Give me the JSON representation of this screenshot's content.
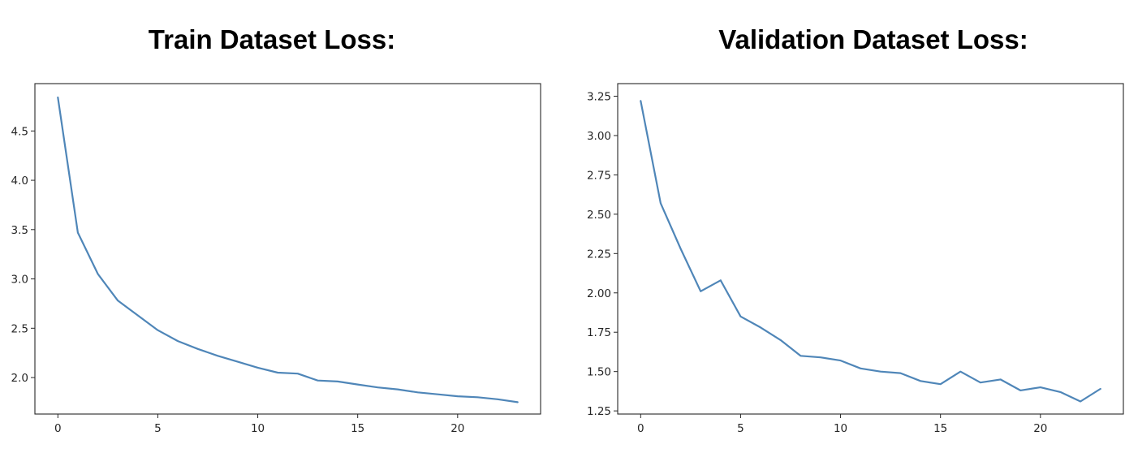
{
  "chart_data": [
    {
      "type": "line",
      "title": "Train Dataset Loss:",
      "xlabel": "",
      "ylabel": "",
      "xlim": [
        -1.15,
        24.15
      ],
      "ylim": [
        1.63,
        4.98
      ],
      "xticks": [
        0,
        5,
        10,
        15,
        20
      ],
      "yticks": [
        2.0,
        2.5,
        3.0,
        3.5,
        4.0,
        4.5
      ],
      "ytick_labels": [
        "2.0",
        "2.5",
        "3.0",
        "3.5",
        "4.0",
        "4.5"
      ],
      "grid": false,
      "line_color": "#4f86b8",
      "series": [
        {
          "x": [
            0,
            1,
            2,
            3,
            4,
            5,
            6,
            7,
            8,
            9,
            10,
            11,
            12,
            13,
            14,
            15,
            16,
            17,
            18,
            19,
            20,
            21,
            22,
            23
          ],
          "values": [
            4.84,
            3.47,
            3.05,
            2.78,
            2.63,
            2.48,
            2.37,
            2.29,
            2.22,
            2.16,
            2.1,
            2.05,
            2.04,
            1.97,
            1.96,
            1.93,
            1.9,
            1.88,
            1.85,
            1.83,
            1.81,
            1.8,
            1.78,
            1.75
          ]
        }
      ]
    },
    {
      "type": "line",
      "title": "Validation Dataset Loss:",
      "xlabel": "",
      "ylabel": "",
      "xlim": [
        -1.15,
        24.15
      ],
      "ylim": [
        1.23,
        3.33
      ],
      "xticks": [
        0,
        5,
        10,
        15,
        20
      ],
      "yticks": [
        1.25,
        1.5,
        1.75,
        2.0,
        2.25,
        2.5,
        2.75,
        3.0,
        3.25
      ],
      "ytick_labels": [
        "1.25",
        "1.50",
        "1.75",
        "2.00",
        "2.25",
        "2.50",
        "2.75",
        "3.00",
        "3.25"
      ],
      "grid": false,
      "line_color": "#4f86b8",
      "series": [
        {
          "x": [
            0,
            1,
            2,
            3,
            4,
            5,
            6,
            7,
            8,
            9,
            10,
            11,
            12,
            13,
            14,
            15,
            16,
            17,
            18,
            19,
            20,
            21,
            22,
            23
          ],
          "values": [
            3.22,
            2.57,
            2.28,
            2.01,
            2.08,
            1.85,
            1.78,
            1.7,
            1.6,
            1.59,
            1.57,
            1.52,
            1.5,
            1.49,
            1.44,
            1.42,
            1.5,
            1.43,
            1.45,
            1.38,
            1.4,
            1.37,
            1.31,
            1.39
          ]
        }
      ]
    }
  ]
}
